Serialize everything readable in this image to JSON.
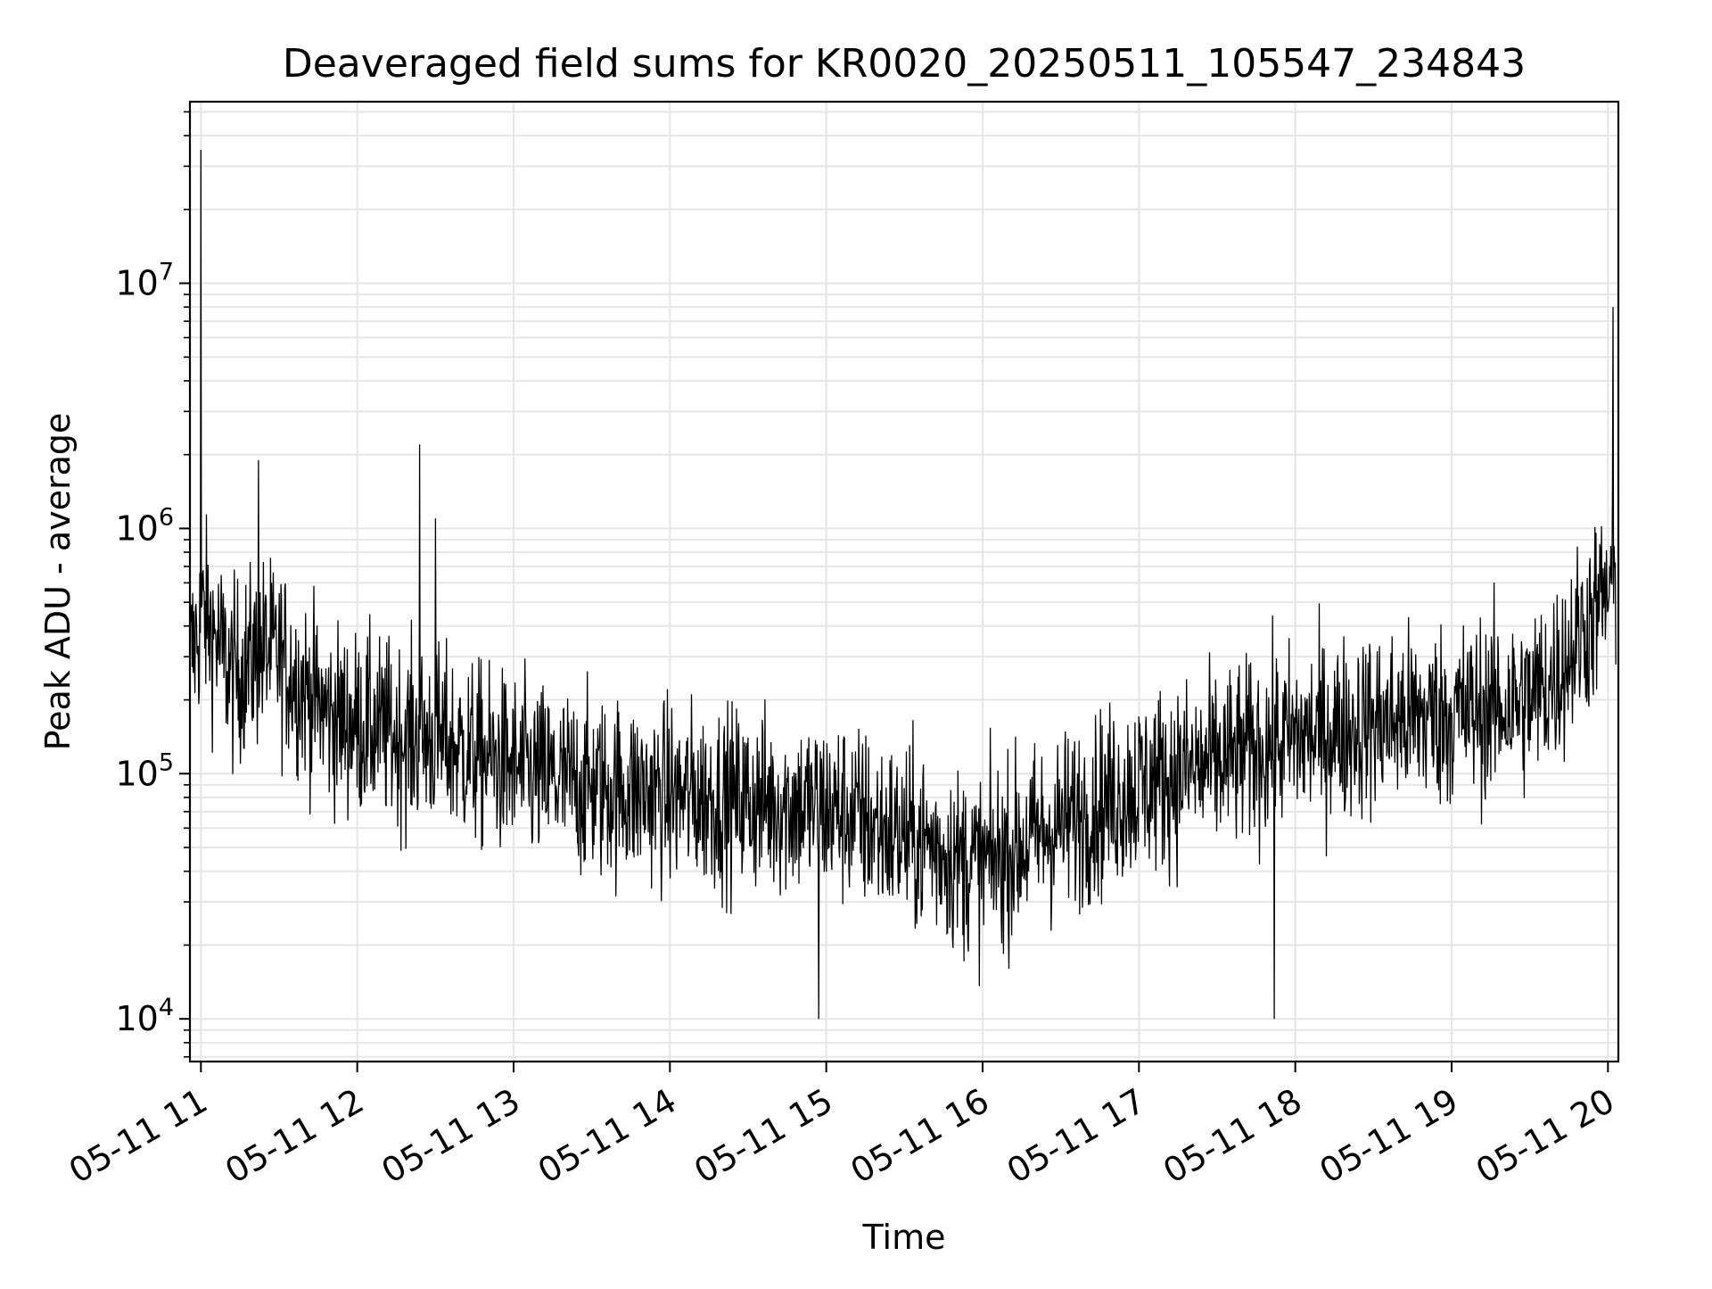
{
  "chart_data": {
    "type": "line",
    "title": "Deaveraged field sums for KR0020_20250511_105547_234843",
    "xlabel": "Time",
    "ylabel": "Peak ADU - average",
    "yscale": "log",
    "ylim": [
      6700,
      55000000
    ],
    "xlim": [
      "2025-05-11 10:55:47",
      "2025-05-11 20:04:00"
    ],
    "grid": true,
    "colors": {
      "line": "#000000",
      "grid": "#e6e6e6",
      "axes": "#000000"
    },
    "x_ticks": [
      {
        "t": "2025-05-11 11:00",
        "label": "05-11 11"
      },
      {
        "t": "2025-05-11 12:00",
        "label": "05-11 12"
      },
      {
        "t": "2025-05-11 13:00",
        "label": "05-11 13"
      },
      {
        "t": "2025-05-11 14:00",
        "label": "05-11 14"
      },
      {
        "t": "2025-05-11 15:00",
        "label": "05-11 15"
      },
      {
        "t": "2025-05-11 16:00",
        "label": "05-11 16"
      },
      {
        "t": "2025-05-11 17:00",
        "label": "05-11 17"
      },
      {
        "t": "2025-05-11 18:00",
        "label": "05-11 18"
      },
      {
        "t": "2025-05-11 19:00",
        "label": "05-11 19"
      },
      {
        "t": "2025-05-11 20:00",
        "label": "05-11 20"
      }
    ],
    "y_ticks": [
      {
        "value": 10000,
        "base": "10",
        "exp": "4"
      },
      {
        "value": 100000,
        "base": "10",
        "exp": "5"
      },
      {
        "value": 1000000,
        "base": "10",
        "exp": "6"
      },
      {
        "value": 10000000,
        "base": "10",
        "exp": "7"
      }
    ],
    "series": [
      {
        "x": [
          "2025-05-11 10:56",
          "2025-05-11 11:01",
          "2025-05-11 11:06",
          "2025-05-11 11:12",
          "2025-05-11 11:18",
          "2025-05-11 11:24",
          "2025-05-11 11:30",
          "2025-05-11 11:40",
          "2025-05-11 11:50",
          "2025-05-11 12:00",
          "2025-05-11 12:10",
          "2025-05-11 12:20",
          "2025-05-11 12:30",
          "2025-05-11 12:40",
          "2025-05-11 12:50",
          "2025-05-11 13:00",
          "2025-05-11 13:15",
          "2025-05-11 13:30",
          "2025-05-11 13:45",
          "2025-05-11 14:00",
          "2025-05-11 14:15",
          "2025-05-11 14:30",
          "2025-05-11 14:45",
          "2025-05-11 15:00",
          "2025-05-11 15:10",
          "2025-05-11 15:20",
          "2025-05-11 15:30",
          "2025-05-11 15:40",
          "2025-05-11 15:50",
          "2025-05-11 16:00",
          "2025-05-11 16:10",
          "2025-05-11 16:20",
          "2025-05-11 16:30",
          "2025-05-11 16:45",
          "2025-05-11 17:00",
          "2025-05-11 17:15",
          "2025-05-11 17:30",
          "2025-05-11 17:45",
          "2025-05-11 18:00",
          "2025-05-11 18:15",
          "2025-05-11 18:30",
          "2025-05-11 18:45",
          "2025-05-11 19:00",
          "2025-05-11 19:15",
          "2025-05-11 19:30",
          "2025-05-11 19:40",
          "2025-05-11 19:50",
          "2025-05-11 20:00",
          "2025-05-11 20:03"
        ],
        "y": [
          300000,
          450000,
          350000,
          250000,
          280000,
          320000,
          300000,
          220000,
          170000,
          160000,
          150000,
          140000,
          140000,
          125000,
          115000,
          105000,
          95000,
          88000,
          85000,
          82000,
          80000,
          78000,
          75000,
          72000,
          68000,
          60000,
          55000,
          52000,
          45000,
          42000,
          48000,
          55000,
          62000,
          75000,
          90000,
          100000,
          110000,
          125000,
          140000,
          150000,
          160000,
          170000,
          175000,
          185000,
          200000,
          250000,
          380000,
          550000,
          600000
        ],
        "spikes": [
          {
            "x": "2025-05-11 11:00",
            "y": 35000000
          },
          {
            "x": "2025-05-11 11:22",
            "y": 1900000
          },
          {
            "x": "2025-05-11 12:24",
            "y": 2200000
          },
          {
            "x": "2025-05-11 12:30",
            "y": 1100000
          },
          {
            "x": "2025-05-11 14:57",
            "y": 10000
          },
          {
            "x": "2025-05-11 17:52",
            "y": 10000
          },
          {
            "x": "2025-05-11 20:02",
            "y": 8000000
          }
        ]
      }
    ]
  }
}
